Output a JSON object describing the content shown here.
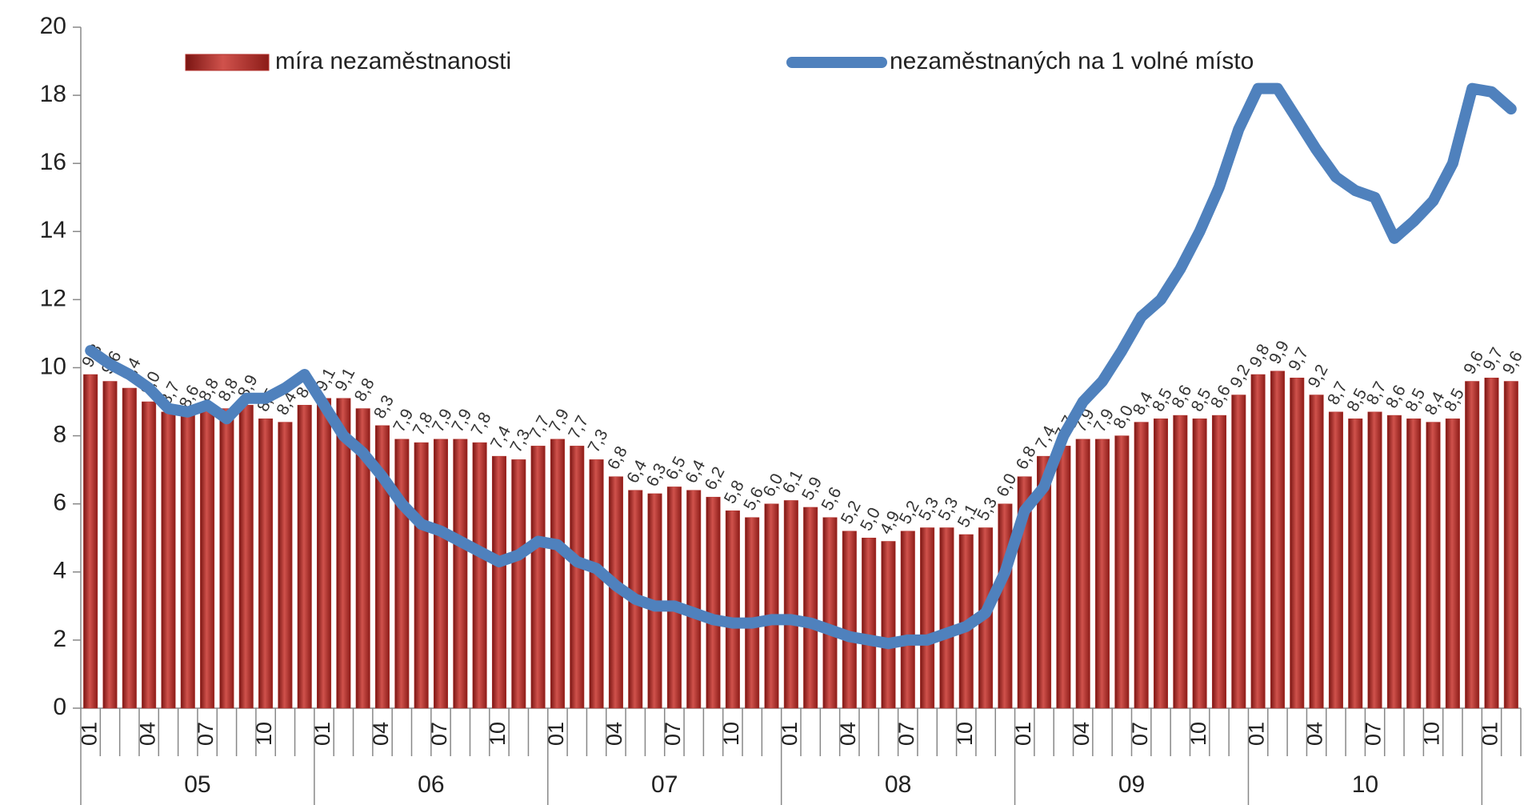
{
  "chart_data": {
    "type": "bar_line",
    "categories": [
      "01",
      null,
      null,
      "04",
      null,
      null,
      "07",
      null,
      null,
      "10",
      null,
      null,
      "01",
      null,
      null,
      "04",
      null,
      null,
      "07",
      null,
      null,
      "10",
      null,
      null,
      "01",
      null,
      null,
      "04",
      null,
      null,
      "07",
      null,
      null,
      "10",
      null,
      null,
      "01",
      null,
      null,
      "04",
      null,
      null,
      "07",
      null,
      null,
      "10",
      null,
      null,
      "01",
      null,
      null,
      "04",
      null,
      null,
      "07",
      null,
      null,
      "10",
      null,
      null,
      "01",
      null,
      null,
      "04",
      null,
      null,
      "07",
      null,
      null,
      "10",
      null,
      null,
      "01",
      null
    ],
    "x_groups": [
      "05",
      "06",
      "07",
      "08",
      "09",
      "10"
    ],
    "series": [
      {
        "name": "míra nezaměstnanosti",
        "type": "bar",
        "color": "#b3312c",
        "values": [
          9.8,
          9.6,
          9.4,
          9.0,
          8.7,
          8.6,
          8.8,
          8.8,
          8.9,
          8.5,
          8.4,
          8.9,
          9.1,
          9.1,
          8.8,
          8.3,
          7.9,
          7.8,
          7.9,
          7.9,
          7.8,
          7.4,
          7.3,
          7.7,
          7.9,
          7.7,
          7.3,
          6.8,
          6.4,
          6.3,
          6.5,
          6.4,
          6.2,
          5.8,
          5.6,
          6.0,
          6.1,
          5.9,
          5.6,
          5.2,
          5.0,
          4.9,
          5.2,
          5.3,
          5.3,
          5.1,
          5.3,
          6.0,
          6.8,
          7.4,
          7.7,
          7.9,
          7.9,
          8.0,
          8.4,
          8.5,
          8.6,
          8.5,
          8.6,
          9.2,
          9.8,
          9.9,
          9.7,
          9.2,
          8.7,
          8.5,
          8.7,
          8.6,
          8.5,
          8.4,
          8.5,
          9.6,
          9.7,
          9.6
        ],
        "value_labels": [
          "9,8",
          "9,6",
          "9,4",
          "9,0",
          "8,7",
          "8,6",
          "8,8",
          "8,8",
          "8,9",
          "8,5",
          "8,4",
          "8,9",
          "9,1",
          "9,1",
          "8,8",
          "8,3",
          "7,9",
          "7,8",
          "7,9",
          "7,9",
          "7,8",
          "7,4",
          "7,3",
          "7,7",
          "7,9",
          "7,7",
          "7,3",
          "6,8",
          "6,4",
          "6,3",
          "6,5",
          "6,4",
          "6,2",
          "5,8",
          "5,6",
          "6,0",
          "6,1",
          "5,9",
          "5,6",
          "5,2",
          "5,0",
          "4,9",
          "5,2",
          "5,3",
          "5,3",
          "5,1",
          "5,3",
          "6,0",
          "6,8",
          "7,4",
          "7,7",
          "7,9",
          "7,9",
          "8,0",
          "8,4",
          "8,5",
          "8,6",
          "8,5",
          "8,6",
          "9,2",
          "9,8",
          "9,9",
          "9,7",
          "9,2",
          "8,7",
          "8,5",
          "8,7",
          "8,6",
          "8,5",
          "8,4",
          "8,5",
          "9,6",
          "9,7",
          "9,6"
        ]
      },
      {
        "name": "nezaměstnaných na 1 volné místo",
        "type": "line",
        "color": "#4f81bd",
        "values": [
          10.5,
          10.1,
          9.8,
          9.4,
          8.8,
          8.7,
          8.9,
          8.5,
          9.1,
          9.1,
          9.4,
          9.8,
          8.9,
          8.0,
          7.5,
          6.8,
          6.0,
          5.4,
          5.2,
          4.9,
          4.6,
          4.3,
          4.5,
          4.9,
          4.8,
          4.3,
          4.1,
          3.6,
          3.2,
          3.0,
          3.0,
          2.8,
          2.6,
          2.5,
          2.5,
          2.6,
          2.6,
          2.5,
          2.3,
          2.1,
          2.0,
          1.9,
          2.0,
          2.0,
          2.2,
          2.4,
          2.8,
          4.0,
          5.8,
          6.5,
          8.0,
          9.0,
          9.6,
          10.5,
          11.5,
          12.0,
          12.9,
          14.0,
          15.3,
          17.0,
          18.2,
          18.2,
          17.3,
          16.4,
          15.6,
          15.2,
          15.0,
          13.8,
          14.3,
          14.9,
          16.0,
          18.2,
          18.1,
          17.6
        ]
      }
    ],
    "ylim": [
      0,
      20
    ],
    "yticks": [
      0,
      2,
      4,
      6,
      8,
      10,
      12,
      14,
      16,
      18,
      20
    ],
    "grid": false,
    "legend": "top"
  }
}
